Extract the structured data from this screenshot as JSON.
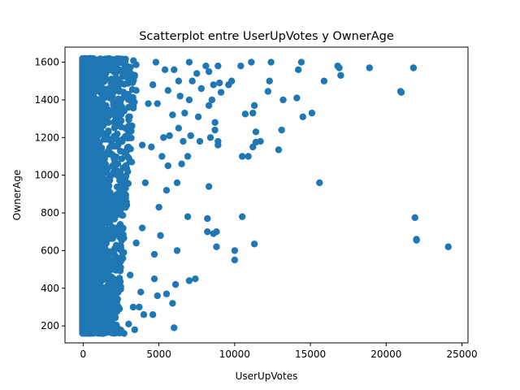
{
  "chart_data": {
    "type": "scatter",
    "title": "Scatterplot entre UserUpVotes y OwnerAge",
    "xlabel": "UserUpVotes",
    "ylabel": "OwnerAge",
    "xlim": [
      -1200,
      25400
    ],
    "ylim": [
      110,
      1680
    ],
    "xticks": [
      0,
      5000,
      10000,
      15000,
      20000,
      25000
    ],
    "yticks": [
      200,
      400,
      600,
      800,
      1000,
      1200,
      1400,
      1600
    ],
    "grid": false,
    "legend": "none",
    "color": "#1f77b4",
    "dense_region": {
      "x_range": [
        0,
        2500
      ],
      "y_range": [
        160,
        1620
      ],
      "description": "saturated cluster near x=0"
    },
    "series": [
      {
        "values": [
          [
            24100,
            620
          ],
          [
            22000,
            660
          ],
          [
            22000,
            655
          ],
          [
            21900,
            775
          ],
          [
            21800,
            1570
          ],
          [
            21000,
            1440
          ],
          [
            20950,
            1445
          ],
          [
            18900,
            1570
          ],
          [
            17000,
            1530
          ],
          [
            16900,
            1570
          ],
          [
            16800,
            1580
          ],
          [
            15900,
            1500
          ],
          [
            15600,
            960
          ],
          [
            15100,
            1330
          ],
          [
            14500,
            1310
          ],
          [
            14400,
            1600
          ],
          [
            14200,
            1560
          ],
          [
            14100,
            1410
          ],
          [
            13200,
            1400
          ],
          [
            13100,
            1240
          ],
          [
            12900,
            1135
          ],
          [
            12400,
            1600
          ],
          [
            12300,
            1500
          ],
          [
            12200,
            1445
          ],
          [
            11700,
            1180
          ],
          [
            11400,
            1175
          ],
          [
            11400,
            1230
          ],
          [
            11300,
            1370
          ],
          [
            11300,
            635
          ],
          [
            11200,
            1330
          ],
          [
            11200,
            1150
          ],
          [
            11100,
            1600
          ],
          [
            10900,
            1100
          ],
          [
            10700,
            1325
          ],
          [
            10500,
            1100
          ],
          [
            10500,
            780
          ],
          [
            10400,
            1580
          ],
          [
            10000,
            600
          ],
          [
            10000,
            550
          ],
          [
            9800,
            1500
          ],
          [
            9600,
            1480
          ],
          [
            9100,
            1440
          ],
          [
            9000,
            1490
          ],
          [
            8900,
            1580
          ],
          [
            8900,
            1160
          ],
          [
            8900,
            1180
          ],
          [
            8800,
            700
          ],
          [
            8800,
            620
          ],
          [
            8700,
            1280
          ],
          [
            8700,
            1240
          ],
          [
            8600,
            1480
          ],
          [
            8600,
            690
          ],
          [
            8500,
            1400
          ],
          [
            8400,
            1200
          ],
          [
            8300,
            1550
          ],
          [
            8300,
            1370
          ],
          [
            8300,
            940
          ],
          [
            8200,
            770
          ],
          [
            8200,
            700
          ],
          [
            8100,
            1580
          ],
          [
            7800,
            1460
          ],
          [
            7700,
            1180
          ],
          [
            7600,
            1310
          ],
          [
            7500,
            1540
          ],
          [
            7400,
            450
          ],
          [
            7200,
            1500
          ],
          [
            7100,
            1210
          ],
          [
            7000,
            1600
          ],
          [
            7000,
            1400
          ],
          [
            7000,
            440
          ],
          [
            6900,
            1100
          ],
          [
            6900,
            780
          ],
          [
            6700,
            1330
          ],
          [
            6600,
            1180
          ],
          [
            6500,
            1060
          ],
          [
            6400,
            1420
          ],
          [
            6300,
            1500
          ],
          [
            6300,
            1250
          ],
          [
            6200,
            960
          ],
          [
            6200,
            600
          ],
          [
            6100,
            420
          ],
          [
            6000,
            1560
          ],
          [
            6000,
            190
          ],
          [
            5900,
            1320
          ],
          [
            5900,
            320
          ],
          [
            5700,
            1210
          ],
          [
            5600,
            1450
          ],
          [
            5600,
            1050
          ],
          [
            5500,
            920
          ],
          [
            5500,
            370
          ],
          [
            5400,
            1560
          ],
          [
            5300,
            1200
          ],
          [
            5200,
            1100
          ],
          [
            5100,
            680
          ],
          [
            5000,
            830
          ],
          [
            4900,
            1380
          ],
          [
            4900,
            360
          ],
          [
            4800,
            1600
          ],
          [
            4700,
            580
          ],
          [
            4700,
            450
          ],
          [
            4600,
            1480
          ],
          [
            4600,
            260
          ],
          [
            4500,
            1150
          ],
          [
            4300,
            1380
          ],
          [
            4100,
            960
          ],
          [
            4000,
            260
          ],
          [
            3900,
            1160
          ],
          [
            3900,
            720
          ],
          [
            3800,
            380
          ],
          [
            3700,
            300
          ],
          [
            3500,
            1450
          ],
          [
            3500,
            640
          ],
          [
            3400,
            180
          ],
          [
            3300,
            300
          ],
          [
            3200,
            1070
          ],
          [
            3100,
            470
          ],
          [
            3000,
            1560
          ],
          [
            3000,
            210
          ],
          [
            2800,
            880
          ],
          [
            2700,
            160
          ]
        ]
      }
    ]
  }
}
